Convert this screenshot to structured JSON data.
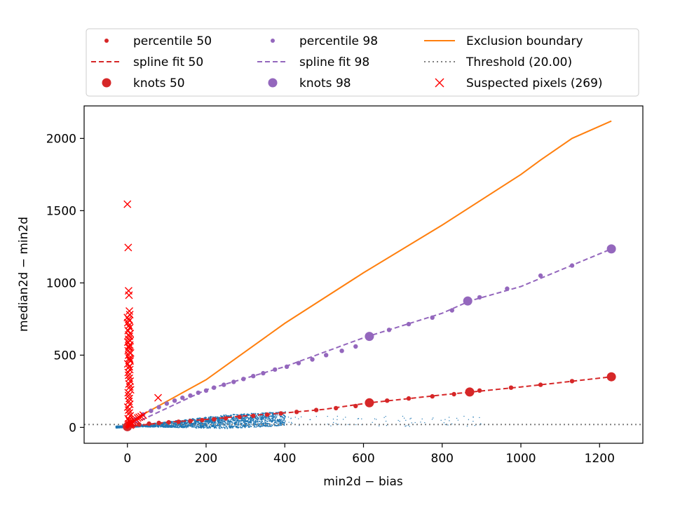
{
  "chart_data": {
    "type": "scatter",
    "xlabel": "min2d − bias",
    "ylabel": "median2d − min2d",
    "xlim": [
      -110,
      1310
    ],
    "ylim": [
      -110,
      2225
    ],
    "x_ticks": [
      0,
      200,
      400,
      600,
      800,
      1000,
      1200
    ],
    "y_ticks": [
      0,
      500,
      1000,
      1500,
      2000
    ],
    "grid": false,
    "legend_position": "top",
    "colors": {
      "p50": "#d62728",
      "p98": "#9467bd",
      "exclusion": "#ff7f0e",
      "threshold": "#7f7f7f",
      "suspected": "#ff0000",
      "pixels": "#1f77b4"
    },
    "legend": [
      {
        "key": "p50_points",
        "label": "percentile 50",
        "marker": "small-dot",
        "color": "#d62728"
      },
      {
        "key": "p50_spline",
        "label": "spline fit 50",
        "marker": "dashed-line",
        "color": "#d62728"
      },
      {
        "key": "p50_knots",
        "label": "knots 50",
        "marker": "big-dot",
        "color": "#d62728"
      },
      {
        "key": "p98_points",
        "label": "percentile 98",
        "marker": "small-dot",
        "color": "#9467bd"
      },
      {
        "key": "p98_spline",
        "label": "spline fit 98",
        "marker": "dashed-line",
        "color": "#9467bd"
      },
      {
        "key": "p98_knots",
        "label": "knots 98",
        "marker": "big-dot",
        "color": "#9467bd"
      },
      {
        "key": "exclusion",
        "label": "Exclusion boundary",
        "marker": "solid-line",
        "color": "#ff7f0e"
      },
      {
        "key": "threshold",
        "label": "Threshold (20.00)",
        "marker": "dotted-line",
        "color": "#7f7f7f"
      },
      {
        "key": "suspected",
        "label": "Suspected pixels (269)",
        "marker": "x",
        "color": "#ff0000"
      }
    ],
    "series": [
      {
        "name": "percentile 50",
        "x": [
          0,
          10,
          30,
          55,
          80,
          105,
          130,
          160,
          190,
          220,
          250,
          285,
          320,
          355,
          390,
          430,
          480,
          530,
          580,
          615,
          660,
          715,
          775,
          830,
          875,
          895,
          975,
          1050,
          1130,
          1230
        ],
        "y": [
          5,
          12,
          20,
          26,
          31,
          35,
          39,
          44,
          50,
          56,
          63,
          72,
          80,
          88,
          97,
          107,
          120,
          133,
          148,
          170,
          185,
          200,
          215,
          230,
          245,
          255,
          275,
          295,
          320,
          350
        ]
      },
      {
        "name": "spline fit 50",
        "x": [
          0,
          100,
          200,
          300,
          400,
          500,
          615,
          700,
          800,
          875,
          1000,
          1100,
          1230
        ],
        "y": [
          5,
          35,
          55,
          80,
          100,
          125,
          170,
          195,
          225,
          245,
          280,
          310,
          350
        ]
      },
      {
        "name": "knots 50",
        "x": [
          0,
          615,
          870,
          1230
        ],
        "y": [
          5,
          170,
          245,
          350
        ]
      },
      {
        "name": "percentile 98",
        "x": [
          0,
          10,
          20,
          40,
          60,
          80,
          100,
          120,
          140,
          160,
          180,
          200,
          220,
          245,
          270,
          295,
          320,
          345,
          375,
          405,
          435,
          470,
          505,
          545,
          580,
          615,
          665,
          715,
          775,
          825,
          865,
          895,
          965,
          1050,
          1130,
          1230
        ],
        "y": [
          5,
          35,
          55,
          90,
          115,
          140,
          165,
          185,
          205,
          220,
          240,
          255,
          275,
          295,
          315,
          335,
          355,
          375,
          400,
          420,
          445,
          470,
          500,
          530,
          560,
          630,
          675,
          715,
          760,
          810,
          875,
          900,
          960,
          1050,
          1120,
          1235
        ]
      },
      {
        "name": "spline fit 98",
        "x": [
          0,
          200,
          400,
          600,
          800,
          870,
          1000,
          1230
        ],
        "y": [
          5,
          260,
          420,
          620,
          790,
          875,
          975,
          1235
        ]
      },
      {
        "name": "knots 98",
        "x": [
          0,
          615,
          865,
          1230
        ],
        "y": [
          5,
          630,
          875,
          1235
        ]
      },
      {
        "name": "Exclusion boundary",
        "x": [
          0,
          200,
          400,
          600,
          800,
          1000,
          1050,
          1130,
          1230
        ],
        "y": [
          30,
          330,
          720,
          1070,
          1400,
          1750,
          1850,
          2000,
          2120
        ]
      },
      {
        "name": "Threshold (20.00)",
        "y_const": 20
      },
      {
        "name": "Suspected pixels (269)",
        "x": [
          0,
          2,
          3,
          4,
          5,
          6,
          0,
          3,
          5,
          1,
          4,
          6,
          2,
          7,
          5,
          3,
          1,
          6,
          4,
          2,
          8,
          3,
          5,
          7,
          1,
          4,
          6,
          2,
          3,
          5,
          7,
          4,
          6,
          8,
          2,
          3,
          5,
          4,
          6,
          1,
          3,
          5,
          7,
          2,
          4,
          6,
          8,
          3,
          5,
          7,
          10,
          12,
          14,
          18,
          22,
          26,
          30,
          35,
          40,
          78,
          4,
          5,
          6,
          3,
          7,
          5
        ],
        "y": [
          1545,
          1245,
          945,
          915,
          805,
          780,
          760,
          750,
          740,
          725,
          705,
          690,
          670,
          650,
          630,
          610,
          590,
          570,
          550,
          530,
          515,
          500,
          480,
          460,
          440,
          420,
          400,
          380,
          360,
          340,
          320,
          300,
          280,
          260,
          240,
          220,
          200,
          180,
          160,
          140,
          120,
          100,
          80,
          60,
          50,
          40,
          30,
          25,
          20,
          15,
          20,
          30,
          40,
          45,
          55,
          65,
          70,
          75,
          85,
          205,
          560,
          520,
          470,
          640,
          600,
          420
        ]
      }
    ],
    "pixel_cloud": {
      "name": "pixels",
      "x_range": [
        -30,
        400
      ],
      "y_center_slope": 0.3,
      "spread": 60
    }
  }
}
